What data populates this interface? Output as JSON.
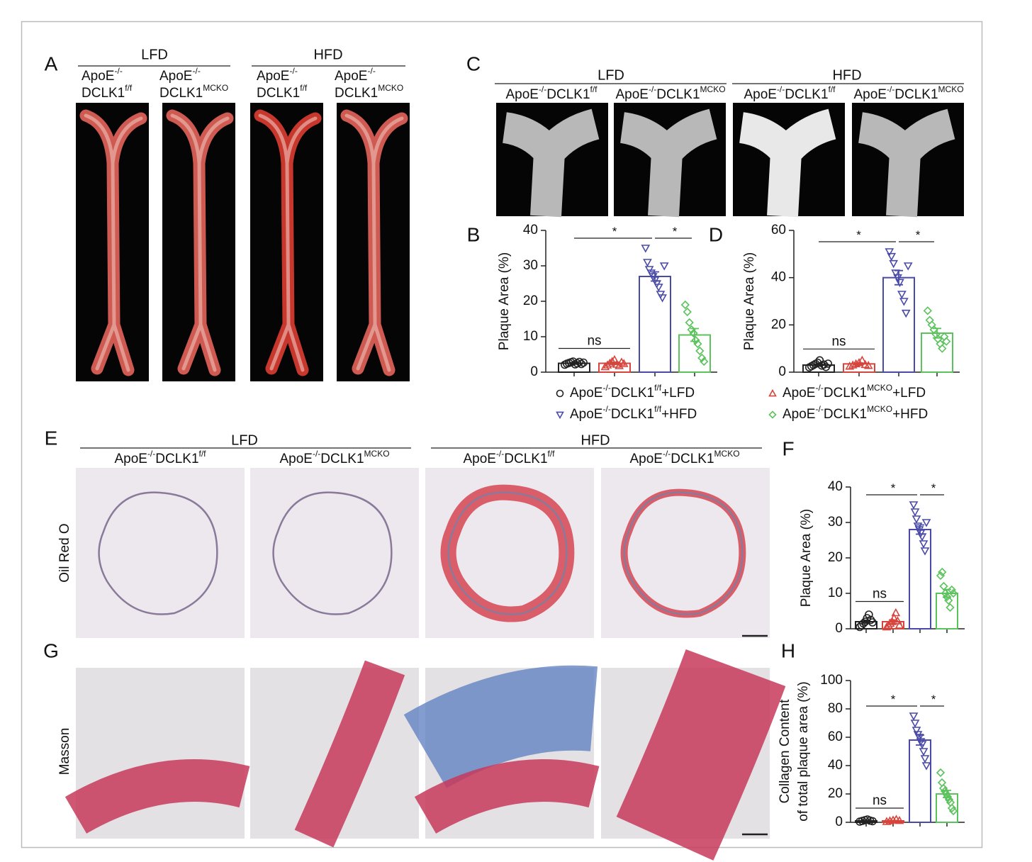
{
  "panel_labels": [
    "A",
    "B",
    "C",
    "D",
    "E",
    "F",
    "G",
    "H"
  ],
  "panel_a": {
    "groups": [
      "LFD",
      "HFD"
    ],
    "columns": [
      [
        "ApoE",
        "-/-",
        "DCLK1",
        "f/f"
      ],
      [
        "ApoE",
        "-/-",
        "DCLK1",
        "MCKO"
      ],
      [
        "ApoE",
        "-/-",
        "DCLK1",
        "f/f"
      ],
      [
        "ApoE",
        "-/-",
        "DCLK1",
        "MCKO"
      ]
    ]
  },
  "panel_c": {
    "groups": [
      "LFD",
      "HFD"
    ],
    "columns": [
      [
        "ApoE",
        "-/-",
        "DCLK1",
        "f/f"
      ],
      [
        "ApoE",
        "-/-",
        "DCLK1",
        "MCKO"
      ],
      [
        "ApoE",
        "-/-",
        "DCLK1",
        "f/f"
      ],
      [
        "ApoE",
        "-/-",
        "DCLK1",
        "MCKO"
      ]
    ]
  },
  "panel_e": {
    "groups": [
      "LFD",
      "HFD"
    ],
    "columns": [
      [
        "ApoE",
        "-/-",
        "DCLK1",
        "f/f"
      ],
      [
        "ApoE",
        "-/-",
        "DCLK1",
        "MCKO"
      ],
      [
        "ApoE",
        "-/-",
        "DCLK1",
        "f/f"
      ],
      [
        "ApoE",
        "-/-",
        "DCLK1",
        "MCKO"
      ]
    ],
    "row_labels": [
      "Oil Red O",
      "Masson"
    ]
  },
  "legend": [
    {
      "label": [
        "ApoE",
        "-/-",
        "DCLK1",
        "f/f",
        "+LFD"
      ],
      "color": "#222222",
      "marker": "circle"
    },
    {
      "label": [
        "ApoE",
        "-/-",
        "DCLK1",
        "MCKO",
        "+LFD"
      ],
      "color": "#d6453d",
      "marker": "triangle-up"
    },
    {
      "label": [
        "ApoE",
        "-/-",
        "DCLK1",
        "f/f",
        "+HFD"
      ],
      "color": "#4a4aa8",
      "marker": "triangle-down"
    },
    {
      "label": [
        "ApoE",
        "-/-",
        "DCLK1",
        "MCKO",
        "+HFD"
      ],
      "color": "#5cc25c",
      "marker": "diamond"
    }
  ],
  "chart_data": [
    {
      "type": "bar",
      "y_label": [
        "Plaque Area (%)"
      ],
      "ylim": [
        0,
        40
      ],
      "yticks": [
        0,
        10,
        20,
        30,
        40
      ],
      "annotations": [
        "ns",
        "*",
        "*"
      ],
      "series": [
        {
          "value": 2.5,
          "error": 0.2,
          "points": [
            2.1,
            2.4,
            2.6,
            2.8,
            3.0,
            2.2,
            2.5,
            2.9,
            2.3,
            2.7
          ]
        },
        {
          "value": 2.5,
          "error": 0.3,
          "points": [
            1.5,
            2.0,
            2.5,
            3.0,
            3.5,
            2.2,
            1.8,
            2.8,
            2.4
          ]
        },
        {
          "value": 27,
          "error": 1.3,
          "points": [
            35,
            31,
            29,
            28,
            27,
            26,
            25,
            24,
            22,
            21,
            30
          ]
        },
        {
          "value": 10.5,
          "error": 1.8,
          "points": [
            19,
            17,
            14,
            12,
            11,
            9,
            8,
            6,
            4,
            3
          ]
        }
      ]
    },
    {
      "type": "bar",
      "y_label": [
        "Plaque Area (%)"
      ],
      "ylim": [
        0,
        60
      ],
      "yticks": [
        0,
        20,
        40,
        60
      ],
      "annotations": [
        "ns",
        "*",
        "*"
      ],
      "series": [
        {
          "value": 3,
          "error": 0.4,
          "points": [
            2,
            2.5,
            3,
            3.5,
            4,
            5,
            2.8,
            3.2,
            2.2,
            3.6
          ]
        },
        {
          "value": 3.5,
          "error": 0.4,
          "points": [
            2.5,
            3,
            3.5,
            4,
            5,
            3.2,
            2.8
          ]
        },
        {
          "value": 40,
          "error": 3,
          "points": [
            51,
            49,
            46,
            42,
            40,
            38,
            33,
            30,
            25,
            45
          ]
        },
        {
          "value": 16.5,
          "error": 2,
          "points": [
            26,
            22,
            20,
            18,
            16,
            14,
            12,
            10,
            15,
            13
          ]
        }
      ]
    },
    {
      "type": "bar",
      "y_label": [
        "Plaque Area (%)"
      ],
      "ylim": [
        0,
        40
      ],
      "yticks": [
        0,
        10,
        20,
        30,
        40
      ],
      "annotations": [
        "ns",
        "*",
        "*"
      ],
      "series": [
        {
          "value": 2,
          "error": 0.4,
          "points": [
            0.5,
            1,
            1.5,
            2,
            3,
            4,
            2.5,
            1.8
          ]
        },
        {
          "value": 2,
          "error": 0.5,
          "points": [
            0.5,
            1,
            1.5,
            2,
            3,
            4.5,
            2.2,
            1
          ]
        },
        {
          "value": 28,
          "error": 1.3,
          "points": [
            35,
            33,
            31,
            29,
            28,
            27,
            26,
            24,
            22,
            30
          ]
        },
        {
          "value": 10,
          "error": 1.1,
          "points": [
            15,
            16,
            12,
            10,
            9,
            8,
            6,
            11,
            10
          ]
        }
      ]
    },
    {
      "type": "bar",
      "y_label": [
        "Collagen Content",
        "of total plaque area (%)"
      ],
      "ylim": [
        0,
        100
      ],
      "yticks": [
        0,
        20,
        40,
        60,
        80,
        100
      ],
      "annotations": [
        "ns",
        "*",
        "*"
      ],
      "series": [
        {
          "value": 1,
          "error": 0.3,
          "points": [
            0.5,
            1,
            1.5,
            2,
            1.2,
            0.8
          ]
        },
        {
          "value": 1,
          "error": 0.3,
          "points": [
            0.5,
            1,
            1.5,
            2,
            1.2
          ]
        },
        {
          "value": 58,
          "error": 3.5,
          "points": [
            75,
            70,
            65,
            62,
            60,
            57,
            55,
            50,
            45,
            40
          ]
        },
        {
          "value": 20,
          "error": 2.5,
          "points": [
            35,
            28,
            24,
            22,
            20,
            18,
            16,
            14,
            10,
            8
          ]
        }
      ]
    }
  ]
}
